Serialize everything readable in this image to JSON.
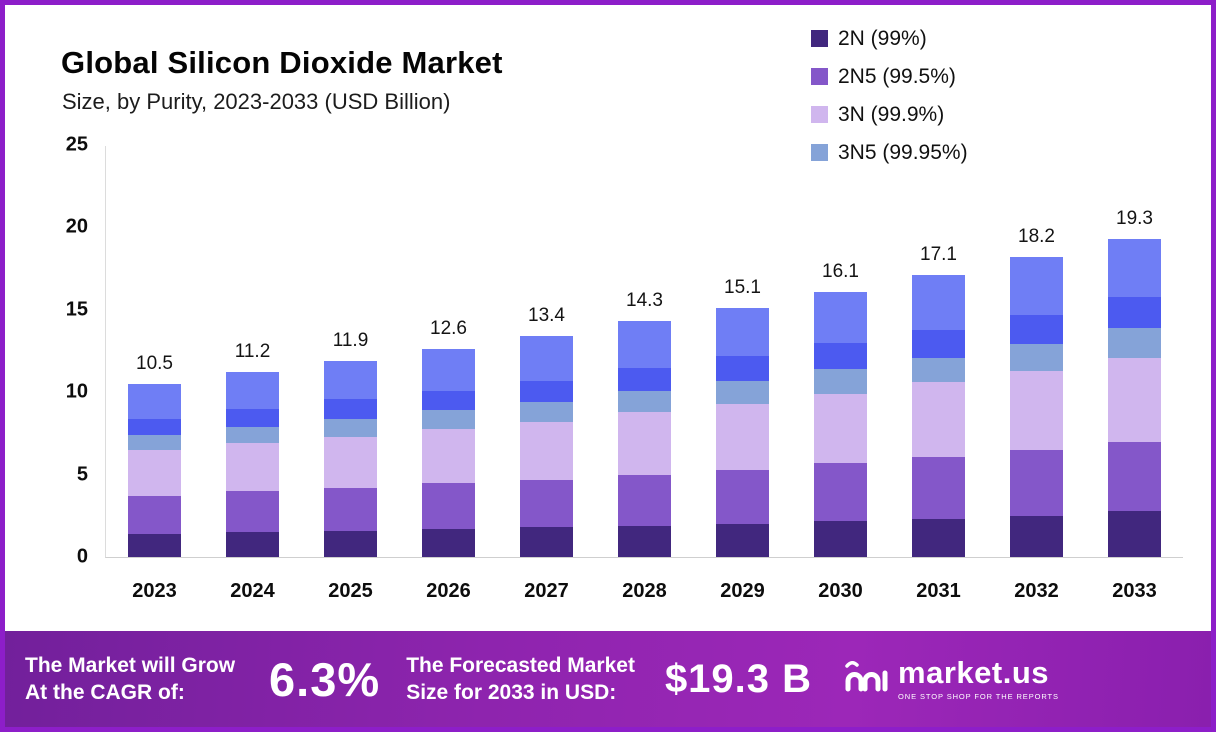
{
  "chart": {
    "title": "Global Silicon Dioxide Market",
    "subtitle": "Size, by Purity, 2023-2033 (USD Billion)",
    "y_ticks": [
      0,
      5,
      10,
      15,
      20,
      25
    ],
    "legend": [
      {
        "label": "2N (99%)",
        "color": "#41277e"
      },
      {
        "label": "2N5 (99.5%)",
        "color": "#8457c9"
      },
      {
        "label": "3N (99.9%)",
        "color": "#d0b6ee"
      },
      {
        "label": "3N5 (99.95%)",
        "color": "#85a3d8"
      }
    ]
  },
  "chart_data": {
    "type": "bar",
    "stacked": true,
    "title": "Global Silicon Dioxide Market Size, by Purity, 2023-2033 (USD Billion)",
    "categories": [
      "2023",
      "2024",
      "2025",
      "2026",
      "2027",
      "2028",
      "2029",
      "2030",
      "2031",
      "2032",
      "2033"
    ],
    "totals": [
      10.5,
      11.2,
      11.9,
      12.6,
      13.4,
      14.3,
      15.1,
      16.1,
      17.1,
      18.2,
      19.3
    ],
    "ylim": [
      0,
      25
    ],
    "legend_position": "top-right",
    "grid": false,
    "series": [
      {
        "name": "2N (99%)",
        "color": "#41277e",
        "values": [
          1.4,
          1.5,
          1.6,
          1.7,
          1.8,
          1.9,
          2.0,
          2.2,
          2.3,
          2.5,
          2.8
        ]
      },
      {
        "name": "2N5 (99.5%)",
        "color": "#8457c9",
        "values": [
          2.3,
          2.5,
          2.6,
          2.8,
          2.9,
          3.1,
          3.3,
          3.5,
          3.8,
          4.0,
          4.2
        ]
      },
      {
        "name": "3N (99.9%)",
        "color": "#d0b6ee",
        "values": [
          2.8,
          2.9,
          3.1,
          3.3,
          3.5,
          3.8,
          4.0,
          4.2,
          4.5,
          4.8,
          5.1
        ]
      },
      {
        "name": "3N5 (99.95%)",
        "color": "#85a3d8",
        "values": [
          0.9,
          1.0,
          1.1,
          1.1,
          1.2,
          1.3,
          1.4,
          1.5,
          1.5,
          1.6,
          1.8
        ]
      },
      {
        "name": "",
        "color": "#4c5af0",
        "values": [
          1.0,
          1.1,
          1.2,
          1.2,
          1.3,
          1.4,
          1.5,
          1.6,
          1.7,
          1.8,
          1.9
        ]
      },
      {
        "name": "",
        "color": "#6f7ef5",
        "values": [
          2.1,
          2.2,
          2.3,
          2.5,
          2.7,
          2.8,
          2.9,
          3.1,
          3.3,
          3.5,
          3.5
        ]
      }
    ]
  },
  "banner": {
    "cagr_label": "The Market will Grow\nAt the CAGR of:",
    "cagr_value": "6.3%",
    "forecast_label": "The Forecasted Market\nSize for 2033 in USD:",
    "forecast_value": "$19.3 B",
    "logo_text": "market.us",
    "logo_tagline": "ONE STOP SHOP FOR THE REPORTS"
  }
}
